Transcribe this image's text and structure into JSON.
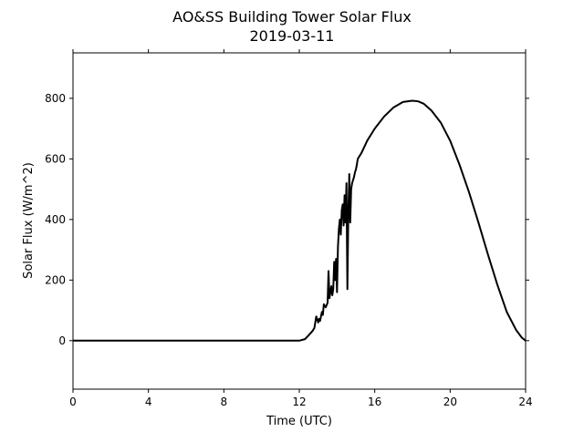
{
  "chart_data": {
    "type": "line",
    "title": "AO&SS Building Tower Solar Flux",
    "subtitle": "2019-03-11",
    "xlabel": "Time (UTC)",
    "ylabel": "Solar Flux (W/m^2)",
    "xlim": [
      0,
      24
    ],
    "ylim": [
      -160,
      950
    ],
    "xticks": [
      0,
      4,
      8,
      12,
      16,
      20,
      24
    ],
    "yticks": [
      0,
      200,
      400,
      600,
      800
    ],
    "grid": false,
    "line_color": "#000000",
    "series": [
      {
        "x": [
          0,
          12.0,
          12.3,
          12.5,
          12.7,
          12.8,
          12.9,
          13.0,
          13.05,
          13.1,
          13.2,
          13.25,
          13.3,
          13.4,
          13.5,
          13.55,
          13.6,
          13.7,
          13.75,
          13.8,
          13.85,
          13.9,
          13.95,
          14.0,
          14.05,
          14.1,
          14.15,
          14.2,
          14.25,
          14.3,
          14.35,
          14.4,
          14.45,
          14.5,
          14.55,
          14.6,
          14.65,
          14.7,
          14.75,
          14.8,
          14.85,
          14.9,
          14.95,
          15.0,
          15.05,
          15.1,
          15.3,
          15.6,
          16.0,
          16.5,
          17.0,
          17.5,
          18.0,
          18.3,
          18.6,
          19.0,
          19.5,
          20.0,
          20.5,
          21.0,
          21.5,
          22.0,
          22.5,
          23.0,
          23.5,
          23.8,
          24.0
        ],
        "y": [
          0,
          0,
          5,
          18,
          32,
          42,
          80,
          60,
          72,
          65,
          95,
          85,
          120,
          110,
          125,
          230,
          140,
          180,
          150,
          170,
          260,
          200,
          270,
          160,
          310,
          370,
          400,
          350,
          430,
          450,
          380,
          480,
          390,
          520,
          170,
          420,
          550,
          390,
          500,
          520,
          530,
          540,
          555,
          565,
          580,
          600,
          620,
          660,
          700,
          740,
          770,
          788,
          792,
          790,
          782,
          760,
          720,
          660,
          580,
          490,
          390,
          285,
          185,
          95,
          35,
          10,
          0
        ]
      }
    ]
  }
}
